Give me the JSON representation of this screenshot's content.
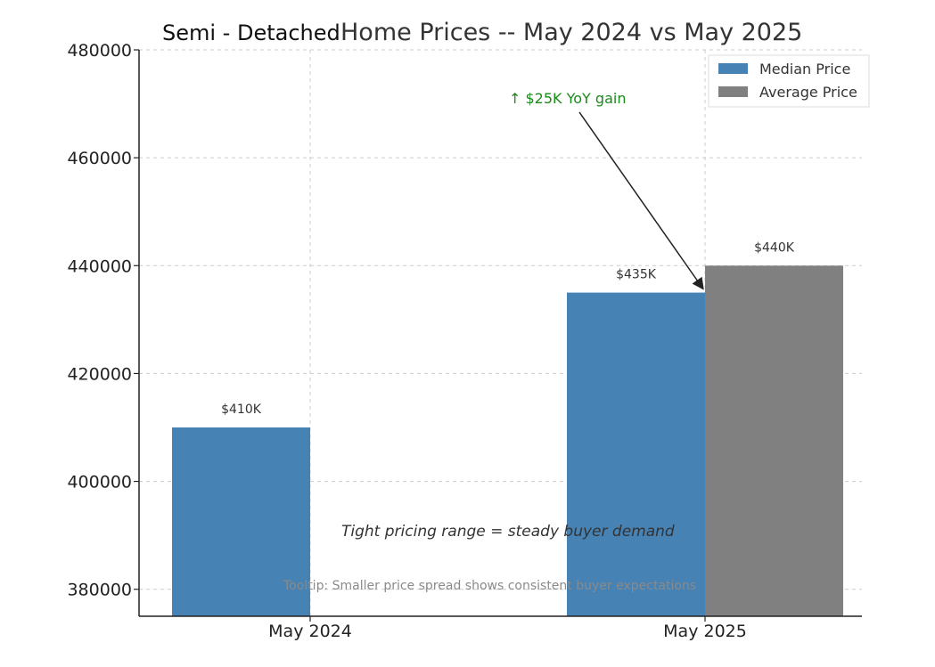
{
  "chart_data": {
    "type": "bar",
    "title_part1": "Semi - Detached",
    "title_part2": "Home Prices -- May 2024 vs May 2025",
    "categories": [
      "May 2024",
      "May 2025"
    ],
    "series": [
      {
        "name": "Median Price",
        "color": "#4682b4",
        "values": [
          410000,
          435000
        ]
      },
      {
        "name": "Average Price",
        "color": "#808080",
        "values": [
          null,
          440000
        ]
      }
    ],
    "data_labels": [
      {
        "series": 0,
        "category": 0,
        "text": "$410K"
      },
      {
        "series": 0,
        "category": 1,
        "text": "$435K"
      },
      {
        "series": 1,
        "category": 1,
        "text": "$440K"
      }
    ],
    "ylim": [
      375000,
      480000
    ],
    "yticks": [
      380000,
      400000,
      420000,
      440000,
      460000,
      480000
    ],
    "ytick_labels": [
      "380000",
      "400000",
      "420000",
      "440000",
      "460000",
      "480000"
    ],
    "grid": true,
    "legend_position": "top-right",
    "annotation": {
      "text": "↑ $25K YoY gain",
      "color": "#1a8a1a",
      "target_category": 1,
      "target_value": 435000
    },
    "note": "Tight pricing range = steady buyer demand",
    "tooltip": "Tooltip: Smaller price spread shows consistent buyer expectations"
  }
}
